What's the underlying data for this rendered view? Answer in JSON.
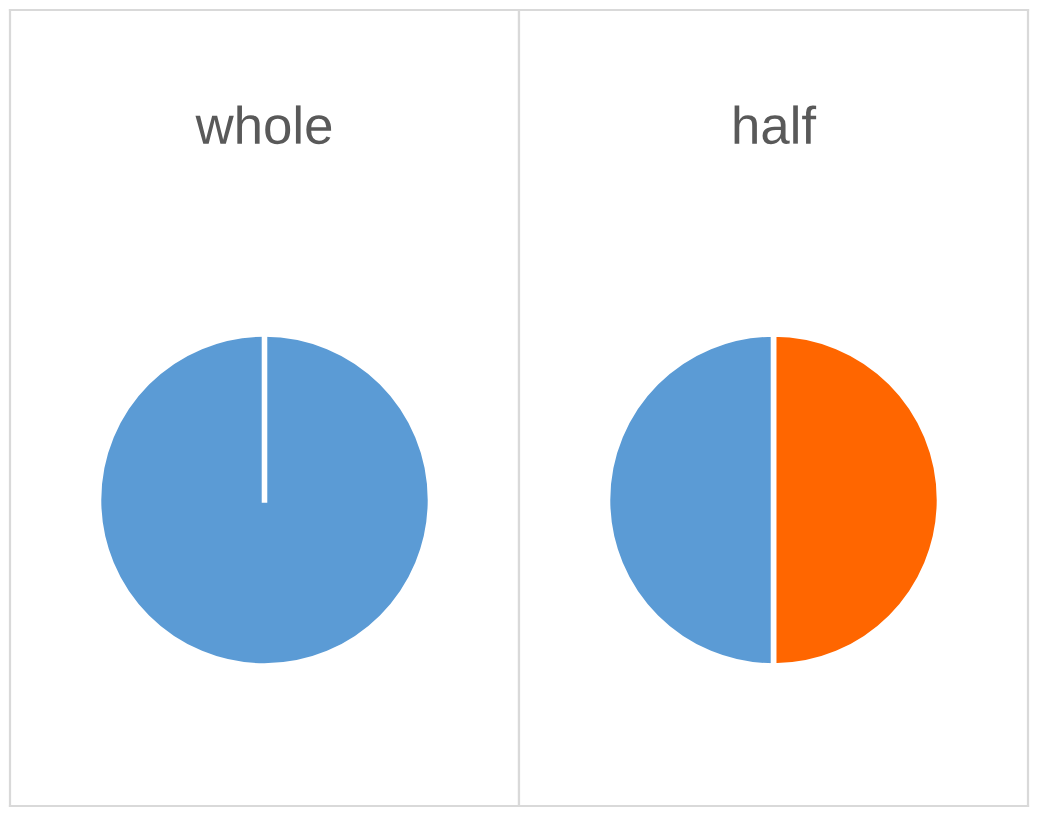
{
  "chart_data": [
    {
      "type": "pie",
      "title": "whole",
      "categories": [
        null
      ],
      "values": [
        100
      ],
      "colors": [
        "#5b9bd5"
      ]
    },
    {
      "type": "pie",
      "title": "half",
      "categories": [
        null,
        null
      ],
      "values": [
        50,
        50
      ],
      "colors": [
        "#ff6600",
        "#5b9bd5"
      ]
    }
  ]
}
